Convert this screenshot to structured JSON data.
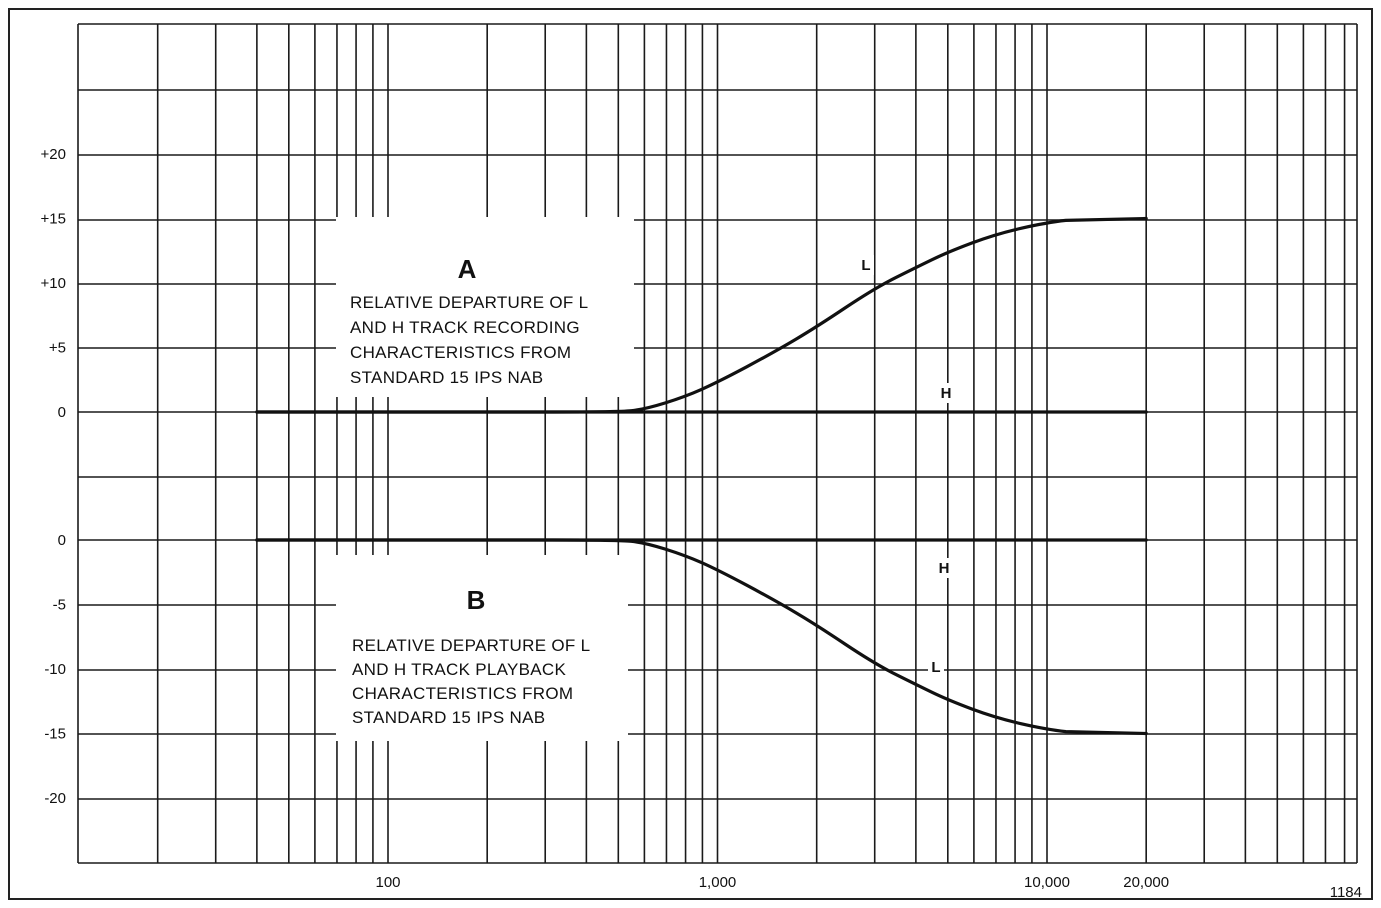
{
  "figure_number": "1184",
  "chart_data": [
    {
      "type": "line",
      "panel": "A",
      "title": "A",
      "annotation": [
        "RELATIVE DEPARTURE OF L",
        "AND H TRACK RECORDING",
        "CHARACTERISTICS FROM",
        "STANDARD 15 IPS NAB"
      ],
      "x_scale": "log",
      "x_tick_labels": [
        {
          "x": 100,
          "label": "100"
        },
        {
          "x": 1000,
          "label": "1,000"
        },
        {
          "x": 10000,
          "label": "10,000"
        },
        {
          "x": 20000,
          "label": "20,000"
        }
      ],
      "y_tick_labels": [
        "+20",
        "+15",
        "+10",
        "+5",
        "0"
      ],
      "y_ticks": [
        20,
        15,
        10,
        5,
        0
      ],
      "ylim": [
        -5,
        30
      ],
      "grid": true,
      "series": [
        {
          "name": "L",
          "x": [
            40,
            200,
            500,
            600,
            800,
            1000,
            1500,
            2000,
            3000,
            4000,
            5000,
            7000,
            10000,
            13000,
            20000
          ],
          "y": [
            0,
            0,
            0,
            0.2,
            1.2,
            2.3,
            4.7,
            6.6,
            9.6,
            11.2,
            12.4,
            13.8,
            14.7,
            15,
            15
          ]
        },
        {
          "name": "H",
          "x": [
            40,
            20000
          ],
          "y": [
            0,
            0
          ]
        }
      ]
    },
    {
      "type": "line",
      "panel": "B",
      "title": "B",
      "annotation": [
        "RELATIVE DEPARTURE OF L",
        "AND H TRACK PLAYBACK",
        "CHARACTERISTICS FROM",
        "STANDARD 15 IPS NAB"
      ],
      "x_scale": "log",
      "x_tick_labels": [
        {
          "x": 100,
          "label": "100"
        },
        {
          "x": 1000,
          "label": "1,000"
        },
        {
          "x": 10000,
          "label": "10,000"
        },
        {
          "x": 20000,
          "label": "20,000"
        }
      ],
      "y_tick_labels": [
        "0",
        "-5",
        "-10",
        "-15",
        "-20"
      ],
      "y_ticks": [
        0,
        -5,
        -10,
        -15,
        -20
      ],
      "ylim": [
        -25,
        0
      ],
      "grid": true,
      "series": [
        {
          "name": "L",
          "x": [
            40,
            200,
            500,
            600,
            800,
            1000,
            1500,
            2000,
            3000,
            4000,
            5000,
            7000,
            10000,
            13000,
            20000
          ],
          "y": [
            0,
            0,
            0,
            -0.2,
            -1.2,
            -2.3,
            -4.7,
            -6.6,
            -9.6,
            -11.2,
            -12.4,
            -13.8,
            -14.7,
            -15,
            -15
          ]
        },
        {
          "name": "H",
          "x": [
            40,
            20000
          ],
          "y": [
            0,
            0
          ]
        }
      ]
    }
  ]
}
